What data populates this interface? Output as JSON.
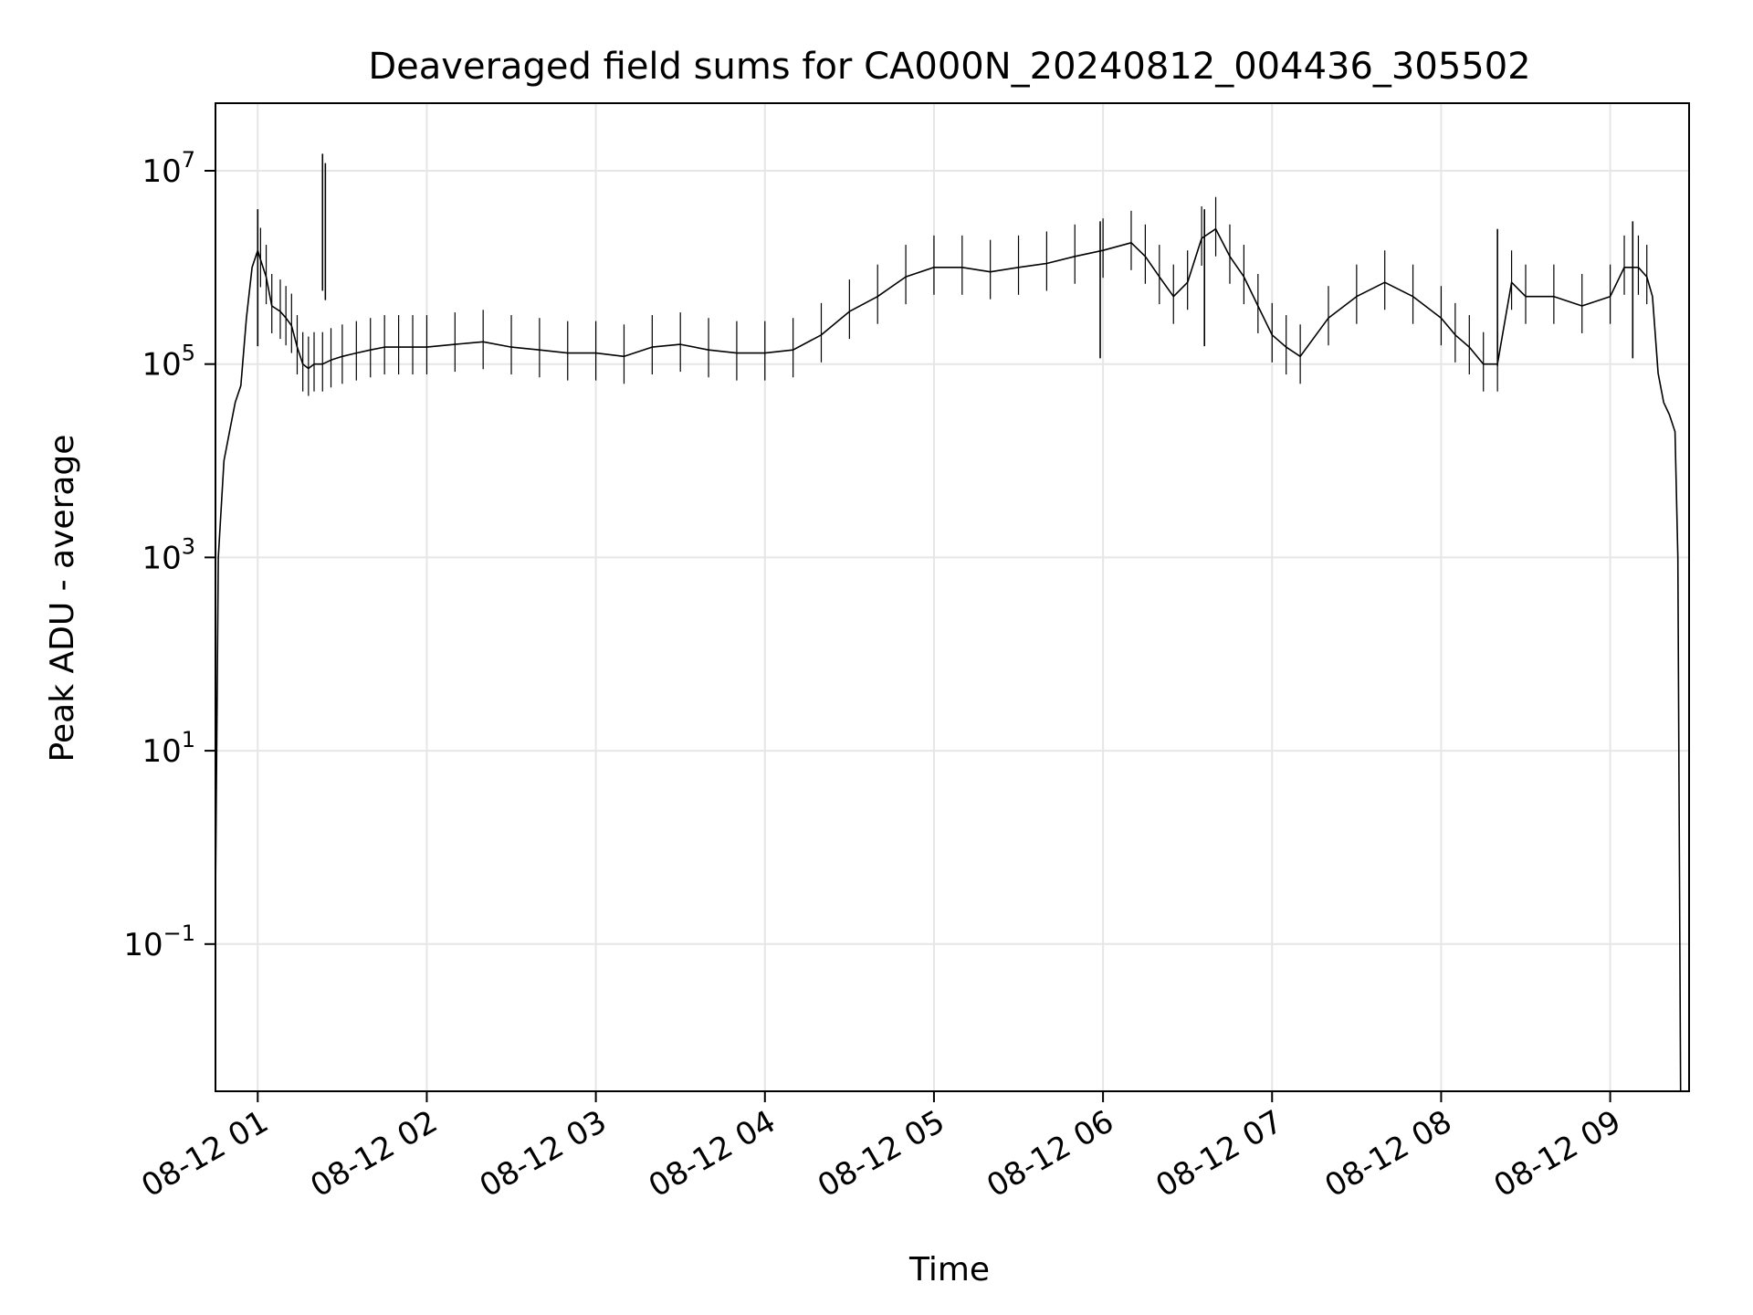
{
  "chart_data": {
    "type": "line",
    "title": "Deaveraged field sums for CA000N_20240812_004436_305502",
    "xlabel": "Time",
    "ylabel": "Peak ADU - average",
    "yscale": "log",
    "grid": true,
    "legend": "none",
    "line_color": "#000000",
    "grid_color": "#e6e6e6",
    "xlim": [
      "08-12 00:45",
      "08-12 09:28"
    ],
    "ylim": [
      0.003,
      50000000
    ],
    "x_ticks": [
      {
        "time": "08-12 01:00",
        "label": "08-12 01"
      },
      {
        "time": "08-12 02:00",
        "label": "08-12 02"
      },
      {
        "time": "08-12 03:00",
        "label": "08-12 03"
      },
      {
        "time": "08-12 04:00",
        "label": "08-12 04"
      },
      {
        "time": "08-12 05:00",
        "label": "08-12 05"
      },
      {
        "time": "08-12 06:00",
        "label": "08-12 06"
      },
      {
        "time": "08-12 07:00",
        "label": "08-12 07"
      },
      {
        "time": "08-12 08:00",
        "label": "08-12 08"
      },
      {
        "time": "08-12 09:00",
        "label": "08-12 09"
      }
    ],
    "y_ticks": [
      {
        "value": 0.1,
        "base": "10",
        "exp": "−1"
      },
      {
        "value": 10,
        "base": "10",
        "exp": "1"
      },
      {
        "value": 1000,
        "base": "10",
        "exp": "3"
      },
      {
        "value": 100000,
        "base": "10",
        "exp": "5"
      },
      {
        "value": 10000000,
        "base": "10",
        "exp": "7"
      }
    ],
    "series": [
      {
        "x": [
          "08-12 00:45",
          "08-12 00:46",
          "08-12 00:48",
          "08-12 00:50",
          "08-12 00:52",
          "08-12 00:54",
          "08-12 00:56",
          "08-12 00:58",
          "08-12 01:00",
          "08-12 01:01",
          "08-12 01:03",
          "08-12 01:05",
          "08-12 01:08",
          "08-12 01:10",
          "08-12 01:12",
          "08-12 01:14",
          "08-12 01:16",
          "08-12 01:18",
          "08-12 01:20",
          "08-12 01:23",
          "08-12 01:26",
          "08-12 01:30",
          "08-12 01:35",
          "08-12 01:40",
          "08-12 01:45",
          "08-12 01:50",
          "08-12 01:55",
          "08-12 02:00",
          "08-12 02:10",
          "08-12 02:20",
          "08-12 02:30",
          "08-12 02:40",
          "08-12 02:50",
          "08-12 03:00",
          "08-12 03:10",
          "08-12 03:20",
          "08-12 03:30",
          "08-12 03:40",
          "08-12 03:50",
          "08-12 04:00",
          "08-12 04:10",
          "08-12 04:20",
          "08-12 04:30",
          "08-12 04:40",
          "08-12 04:50",
          "08-12 05:00",
          "08-12 05:10",
          "08-12 05:20",
          "08-12 05:30",
          "08-12 05:40",
          "08-12 05:50",
          "08-12 06:00",
          "08-12 06:10",
          "08-12 06:15",
          "08-12 06:20",
          "08-12 06:25",
          "08-12 06:30",
          "08-12 06:35",
          "08-12 06:40",
          "08-12 06:45",
          "08-12 06:50",
          "08-12 06:55",
          "08-12 07:00",
          "08-12 07:05",
          "08-12 07:10",
          "08-12 07:20",
          "08-12 07:30",
          "08-12 07:40",
          "08-12 07:50",
          "08-12 08:00",
          "08-12 08:05",
          "08-12 08:10",
          "08-12 08:15",
          "08-12 08:20",
          "08-12 08:25",
          "08-12 08:30",
          "08-12 08:40",
          "08-12 08:50",
          "08-12 09:00",
          "08-12 09:05",
          "08-12 09:10",
          "08-12 09:13",
          "08-12 09:15",
          "08-12 09:17",
          "08-12 09:19",
          "08-12 09:21",
          "08-12 09:23",
          "08-12 09:24",
          "08-12 09:25",
          "08-12 09:26"
        ],
        "y": [
          0.3,
          1000,
          10000,
          20000,
          40000,
          60000,
          300000,
          1000000,
          1500000,
          1200000,
          800000,
          400000,
          350000,
          300000,
          250000,
          150000,
          100000,
          90000,
          100000,
          100000,
          110000,
          120000,
          130000,
          140000,
          150000,
          150000,
          150000,
          150000,
          160000,
          170000,
          150000,
          140000,
          130000,
          130000,
          120000,
          150000,
          160000,
          140000,
          130000,
          130000,
          140000,
          200000,
          350000,
          500000,
          800000,
          1000000,
          1000000,
          900000,
          1000000,
          1100000,
          1300000,
          1500000,
          1800000,
          1300000,
          800000,
          500000,
          700000,
          2000000,
          2500000,
          1300000,
          800000,
          400000,
          200000,
          150000,
          120000,
          300000,
          500000,
          700000,
          500000,
          300000,
          200000,
          150000,
          100000,
          100000,
          700000,
          500000,
          500000,
          400000,
          500000,
          1000000,
          1000000,
          800000,
          500000,
          80000,
          40000,
          30000,
          20000,
          1000,
          0.003,
          0.003
        ]
      }
    ],
    "spikes": [
      {
        "x": "08-12 01:00",
        "y": 4000000
      },
      {
        "x": "08-12 01:23",
        "y": 15000000
      },
      {
        "x": "08-12 01:24",
        "y": 12000000
      },
      {
        "x": "08-12 05:59",
        "y": 3000000
      },
      {
        "x": "08-12 06:36",
        "y": 4000000
      },
      {
        "x": "08-12 08:20",
        "y": 2500000
      },
      {
        "x": "08-12 09:08",
        "y": 3000000
      }
    ]
  }
}
